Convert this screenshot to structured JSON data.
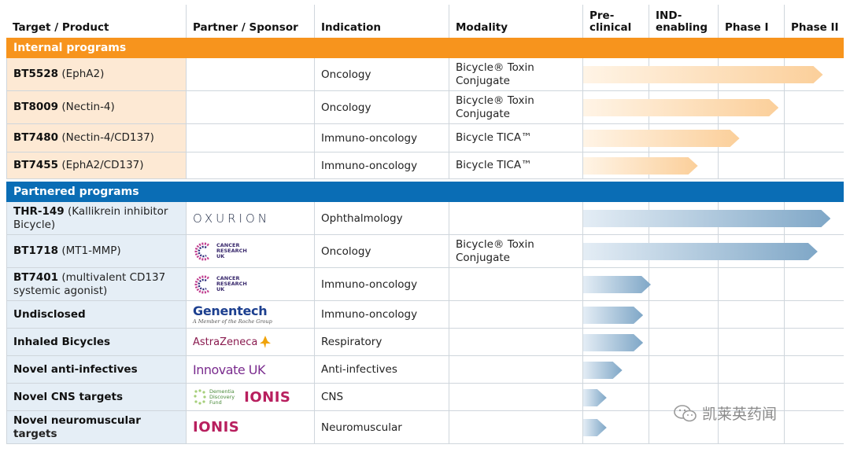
{
  "headers": {
    "target": "Target / Product",
    "partner": "Partner / Sponsor",
    "indication": "Indication",
    "modality": "Modality",
    "preclinical_1": "Pre-",
    "preclinical_2": "clinical",
    "ind_1": "IND-",
    "ind_2": "enabling",
    "phase1": "Phase I",
    "phase2": "Phase II"
  },
  "sections": {
    "internal": "Internal programs",
    "partnered": "Partnered programs"
  },
  "colors": {
    "internal_header": "#f7941d",
    "partnered_header": "#0a6db5",
    "internal_target_bg": "#fde9d4",
    "partnered_target_bg": "#e5eef6",
    "internal_arrow": "#fbcf9a",
    "partnered_arrow": "#7fa7c7"
  },
  "internal_rows": [
    {
      "name": "BT5528",
      "detail": " (EphA2)",
      "partner": "",
      "indication": "Oncology",
      "modality_1": "Bicycle® Toxin",
      "modality_2": "Conjugate",
      "progress": 0.92
    },
    {
      "name": "BT8009",
      "detail": " (Nectin-4)",
      "partner": "",
      "indication": "Oncology",
      "modality_1": "Bicycle® Toxin",
      "modality_2": "Conjugate",
      "progress": 0.75
    },
    {
      "name": "BT7480",
      "detail": " (Nectin-4/CD137)",
      "partner": "",
      "indication": "Immuno-oncology",
      "modality_1": "Bicycle TICA™",
      "modality_2": "",
      "progress": 0.6
    },
    {
      "name": "BT7455",
      "detail": " (EphA2/CD137)",
      "partner": "",
      "indication": "Immuno-oncology",
      "modality_1": "Bicycle TICA™",
      "modality_2": "",
      "progress": 0.44
    }
  ],
  "partnered_rows": [
    {
      "name": "THR-149",
      "detail": " (Kallikrein inhibitor",
      "detail_2": "Bicycle)",
      "partner_logo": "OXURION",
      "indication": "Ophthalmology",
      "modality_1": "",
      "modality_2": "",
      "progress": 0.95
    },
    {
      "name": "BT1718",
      "detail": " (MT1-MMP)",
      "detail_2": "",
      "partner_logo": "CANCER RESEARCH UK",
      "indication": "Oncology",
      "modality_1": "Bicycle® Toxin",
      "modality_2": "Conjugate",
      "progress": 0.9
    },
    {
      "name": "BT7401",
      "detail": " (multivalent CD137",
      "detail_2": "systemic agonist)",
      "partner_logo": "CANCER RESEARCH UK",
      "indication": "Immuno-oncology",
      "modality_1": "",
      "modality_2": "",
      "progress": 0.26
    },
    {
      "name": "Undisclosed",
      "detail": "",
      "detail_2": "",
      "partner_logo": "Genentech",
      "indication": "Immuno-oncology",
      "modality_1": "",
      "modality_2": "",
      "progress": 0.23
    },
    {
      "name": "Inhaled Bicycles",
      "detail": "",
      "detail_2": "",
      "partner_logo": "AstraZeneca",
      "indication": "Respiratory",
      "modality_1": "",
      "modality_2": "",
      "progress": 0.23
    },
    {
      "name": "Novel anti-infectives",
      "detail": "",
      "detail_2": "",
      "partner_logo": "Innovate UK",
      "indication": "Anti-infectives",
      "modality_1": "",
      "modality_2": "",
      "progress": 0.15
    },
    {
      "name": "Novel CNS targets",
      "detail": "",
      "detail_2": "",
      "partner_logo": "Dementia Discovery Fund + IONIS",
      "indication": "CNS",
      "modality_1": "",
      "modality_2": "",
      "progress": 0.09
    },
    {
      "name": "Novel neuromuscular",
      "detail": "",
      "detail_2": "targets",
      "partner_logo": "IONIS",
      "indication": "Neuromuscular",
      "modality_1": "",
      "modality_2": "",
      "progress": 0.09
    }
  ],
  "logos": {
    "oxurion": "OXURION",
    "cru_1": "CANCER",
    "cru_2": "RESEARCH",
    "cru_3": "UK",
    "genentech": "Genentech",
    "genentech_tag": "A Member of the Roche Group",
    "astrazeneca": "AstraZeneca",
    "innovate": "Innovate UK",
    "ionis": "IONIS",
    "ddf_1": "Dementia",
    "ddf_2": "Discovery",
    "ddf_3": "Fund"
  },
  "watermark": "凯莱英药闻"
}
